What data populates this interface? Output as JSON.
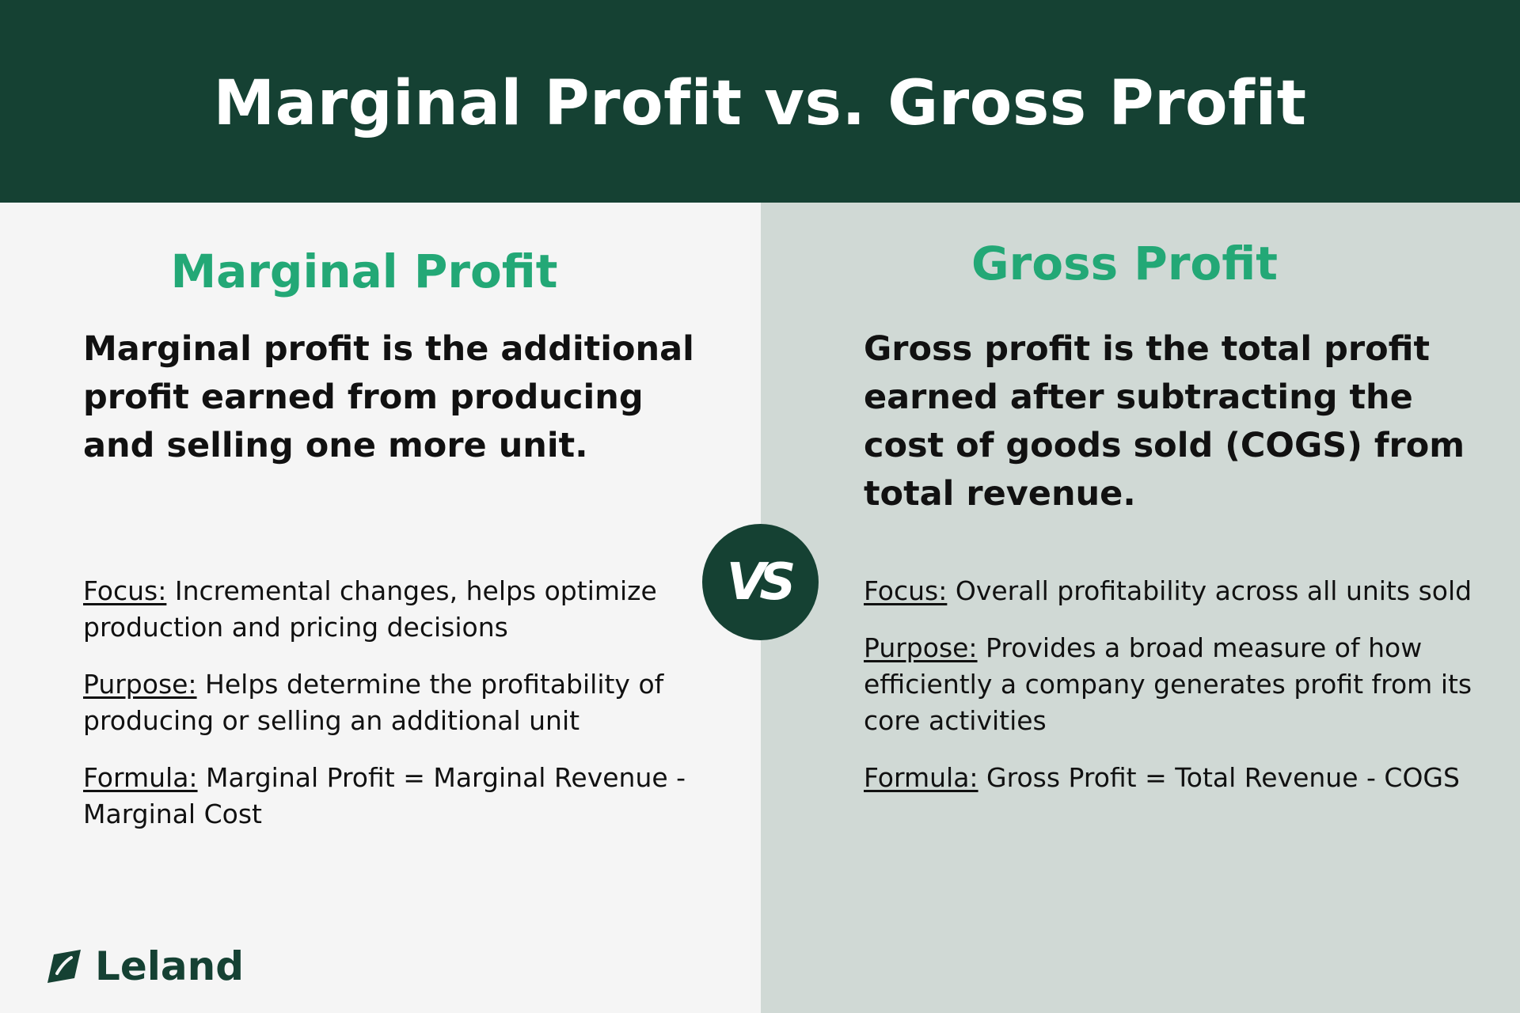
{
  "header": {
    "title": "Marginal Profit vs. Gross Profit"
  },
  "columns": [
    {
      "title": "Marginal Profit",
      "definition": "Marginal profit is the additional profit earned from producing and selling one more unit.",
      "details": [
        {
          "label": "Focus:",
          "text": " Incremental changes, helps optimize production and pricing decisions"
        },
        {
          "label": "Purpose:",
          "text": " Helps determine the profitability of producing or selling an additional unit"
        },
        {
          "label": "Formula:",
          "text": " Marginal Profit = Marginal Revenue - Marginal Cost"
        }
      ]
    },
    {
      "title": "Gross Profit",
      "definition": "Gross profit is the total profit earned after subtracting the cost of goods sold (COGS) from total revenue.",
      "details": [
        {
          "label": "Focus:",
          "text": " Overall profitability across all units sold"
        },
        {
          "label": "Purpose:",
          "text": " Provides a broad measure of how efficiently a company generates profit from its core activities"
        },
        {
          "label": "Formula:",
          "text": " Gross Profit = Total Revenue - COGS"
        }
      ]
    }
  ],
  "vs_badge": {
    "label": "VS"
  },
  "logo": {
    "text": "Leland",
    "icon": "leaf-icon"
  },
  "colors": {
    "header_bg": "#154133",
    "accent": "#23a876",
    "left_bg": "#f5f5f5",
    "right_bg": "#d0d9d5",
    "text": "#111111"
  }
}
